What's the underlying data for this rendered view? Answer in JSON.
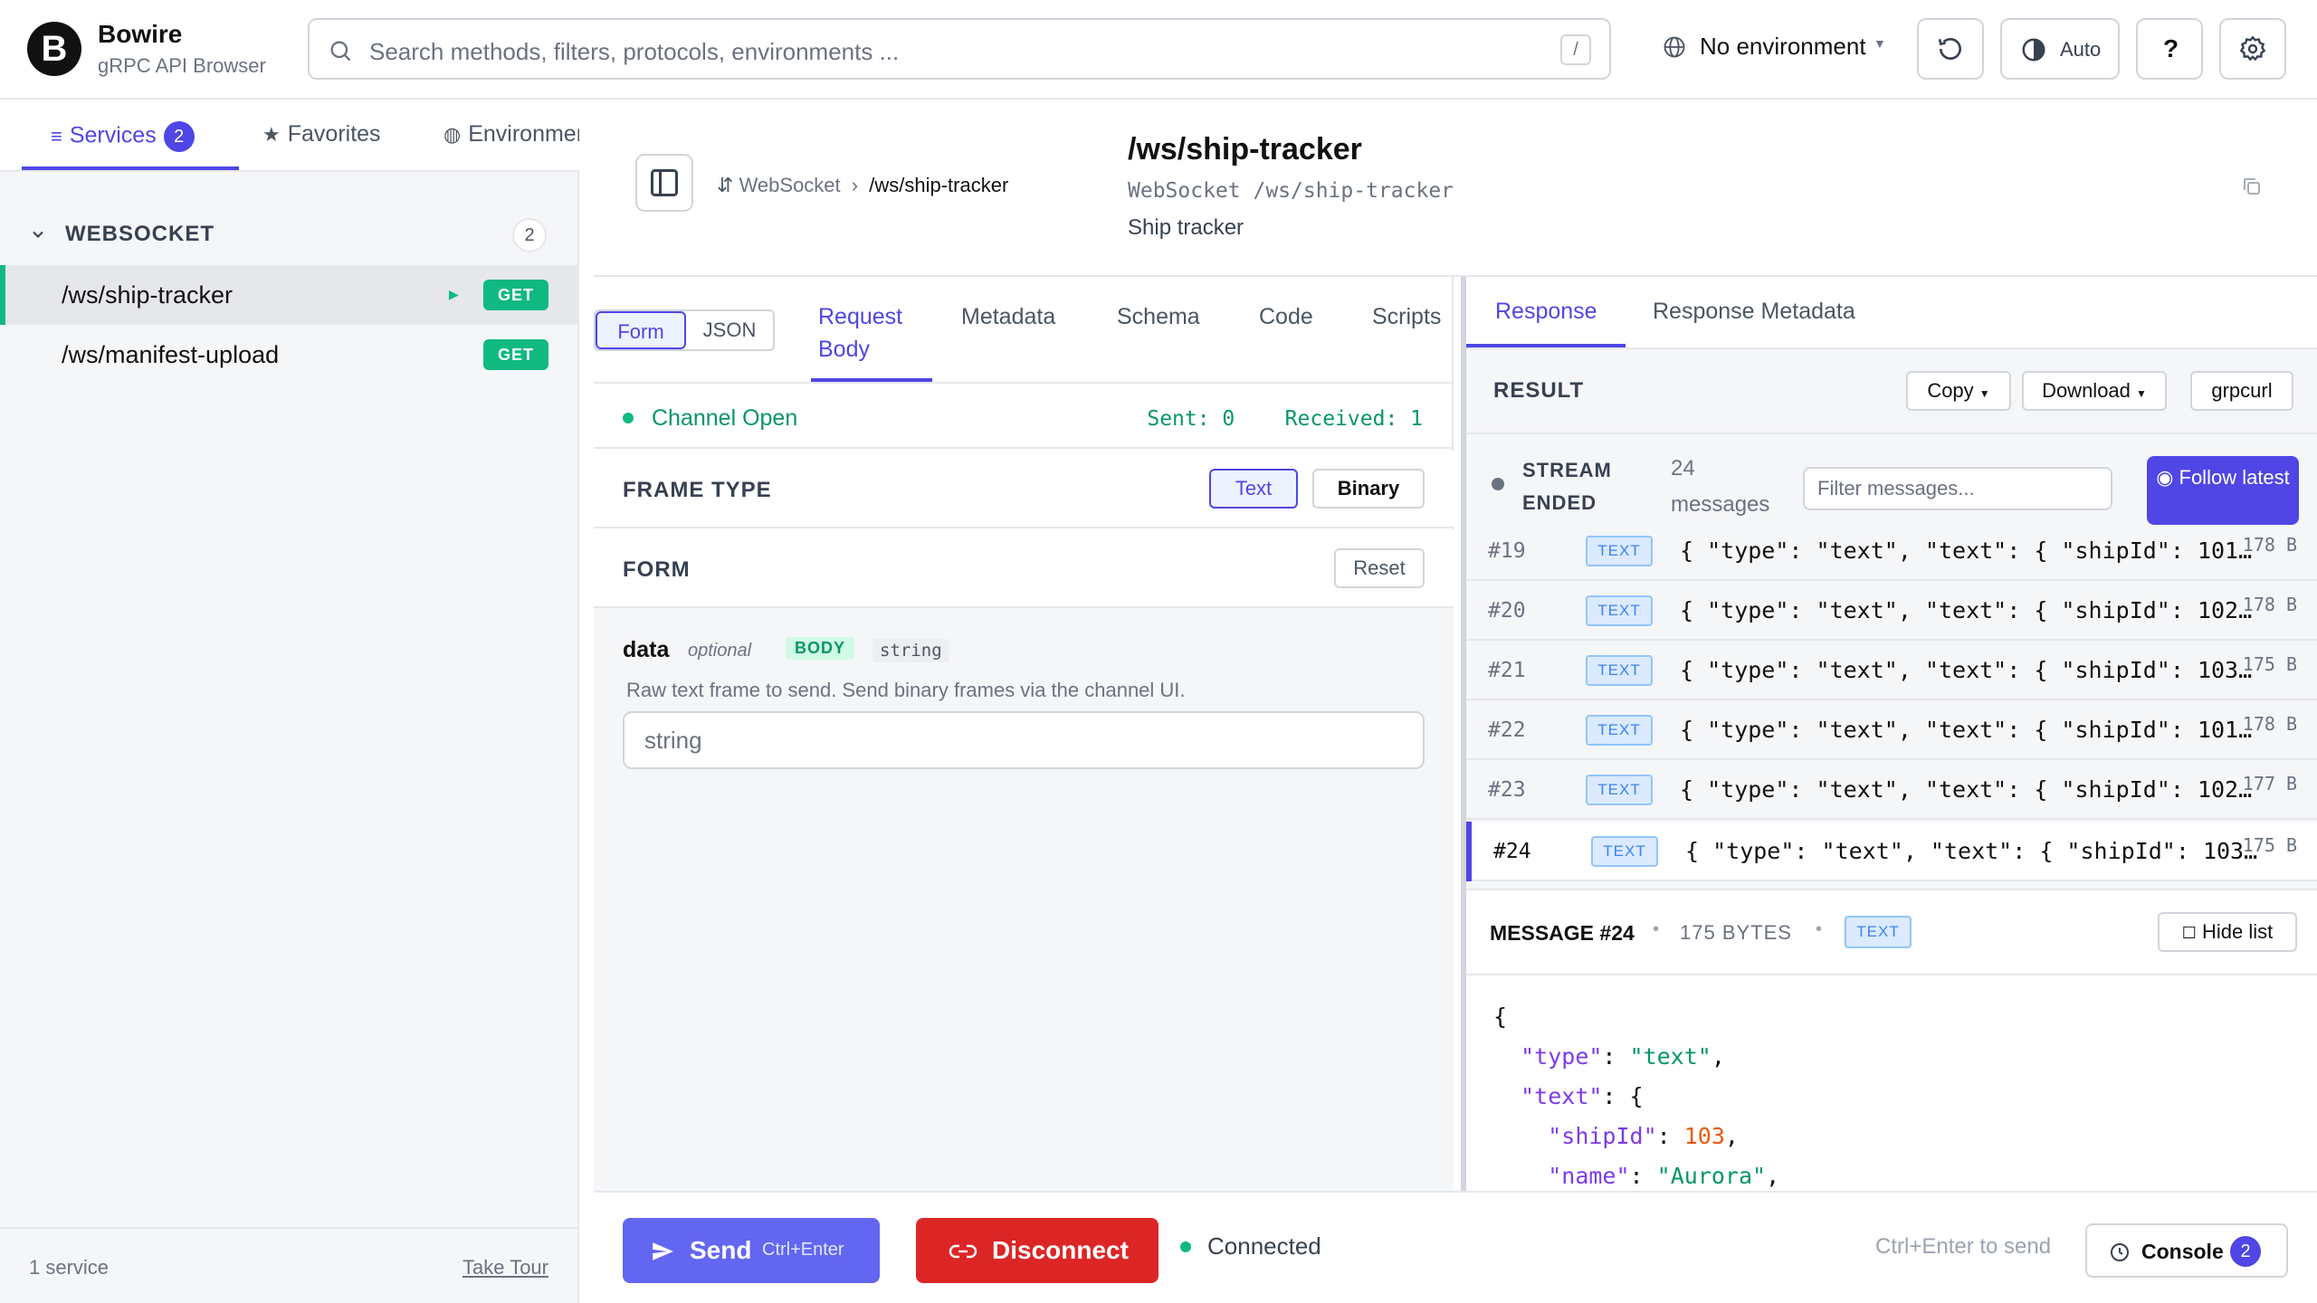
{
  "header": {
    "logo_letter": "B",
    "app_title": "Bowire",
    "app_subtitle": "gRPC API Browser",
    "search_placeholder": "Search methods, filters, protocols, environments ...",
    "search_shortcut": "/",
    "environment": "No environment",
    "theme_label": "Auto",
    "help_label": "?"
  },
  "sidebar": {
    "tabs": [
      {
        "label": "Services",
        "count": "2",
        "active": true
      },
      {
        "label": "Favorites"
      },
      {
        "label": "Environments"
      }
    ],
    "group": {
      "label": "WEBSOCKET",
      "count": "2"
    },
    "services": [
      {
        "name": "/ws/ship-tracker",
        "method": "GET",
        "active": true
      },
      {
        "name": "/ws/manifest-upload",
        "method": "GET"
      }
    ],
    "footer_left": "1 service",
    "footer_right": "Take Tour"
  },
  "main": {
    "breadcrumb_root": "WebSocket",
    "breadcrumb_current": "/ws/ship-tracker",
    "title": "/ws/ship-tracker",
    "subtitle": "WebSocket /ws/ship-tracker",
    "description": "Ship tracker"
  },
  "request": {
    "mode_form": "Form",
    "mode_json": "JSON",
    "tabs": [
      {
        "label": "Request Body",
        "active": true
      },
      {
        "label": "Metadata"
      },
      {
        "label": "Schema"
      },
      {
        "label": "Code"
      },
      {
        "label": "Scripts"
      }
    ],
    "channel_status": "Channel Open",
    "sent": "Sent: 0",
    "received": "Received: 1",
    "frame_type_label": "FRAME TYPE",
    "frame_text": "Text",
    "frame_binary": "Binary",
    "form_label": "FORM",
    "reset_label": "Reset",
    "field": {
      "name": "data",
      "optional": "optional",
      "location": "BODY",
      "type": "string",
      "description": "Raw text frame to send. Send binary frames via the channel UI.",
      "placeholder": "string"
    }
  },
  "response": {
    "tabs": [
      {
        "label": "Response",
        "active": true
      },
      {
        "label": "Response Metadata"
      }
    ],
    "result_label": "RESULT",
    "copy_label": "Copy",
    "download_label": "Download",
    "grpcurl_label": "grpcurl",
    "stream_status": "STREAM ENDED",
    "message_count": "24 messages",
    "filter_placeholder": "Filter messages...",
    "follow_label": "◉ Follow latest",
    "messages": [
      {
        "num": "#19",
        "tag": "TEXT",
        "preview": "{ \"type\": \"text\", \"text\": { \"shipId\": 101…",
        "size": "178 B"
      },
      {
        "num": "#20",
        "tag": "TEXT",
        "preview": "{ \"type\": \"text\", \"text\": { \"shipId\": 102…",
        "size": "178 B"
      },
      {
        "num": "#21",
        "tag": "TEXT",
        "preview": "{ \"type\": \"text\", \"text\": { \"shipId\": 103…",
        "size": "175 B"
      },
      {
        "num": "#22",
        "tag": "TEXT",
        "preview": "{ \"type\": \"text\", \"text\": { \"shipId\": 101…",
        "size": "178 B"
      },
      {
        "num": "#23",
        "tag": "TEXT",
        "preview": "{ \"type\": \"text\", \"text\": { \"shipId\": 102…",
        "size": "177 B"
      },
      {
        "num": "#24",
        "tag": "TEXT",
        "preview": "{ \"type\": \"text\", \"text\": { \"shipId\": 103…",
        "size": "175 B",
        "selected": true
      }
    ],
    "detail": {
      "title": "MESSAGE #24",
      "bytes": "175 BYTES",
      "tag": "TEXT",
      "hide_label": "Hide list",
      "json_type_key": "\"type\"",
      "json_type_val": "\"text\"",
      "json_text_key": "\"text\"",
      "json_ship_key": "\"shipId\"",
      "json_ship_val": "103",
      "json_name_key": "\"name\"",
      "json_name_val": "\"Aurora\""
    }
  },
  "bottom": {
    "send_label": "Send",
    "send_shortcut": "Ctrl+Enter",
    "disconnect_label": "Disconnect",
    "connection_status": "Connected",
    "hint": "Ctrl+Enter to send",
    "console_label": "Console",
    "console_count": "2"
  },
  "colors": {
    "accent": "#4f46e5",
    "success": "#10b981",
    "danger": "#dc2626"
  }
}
